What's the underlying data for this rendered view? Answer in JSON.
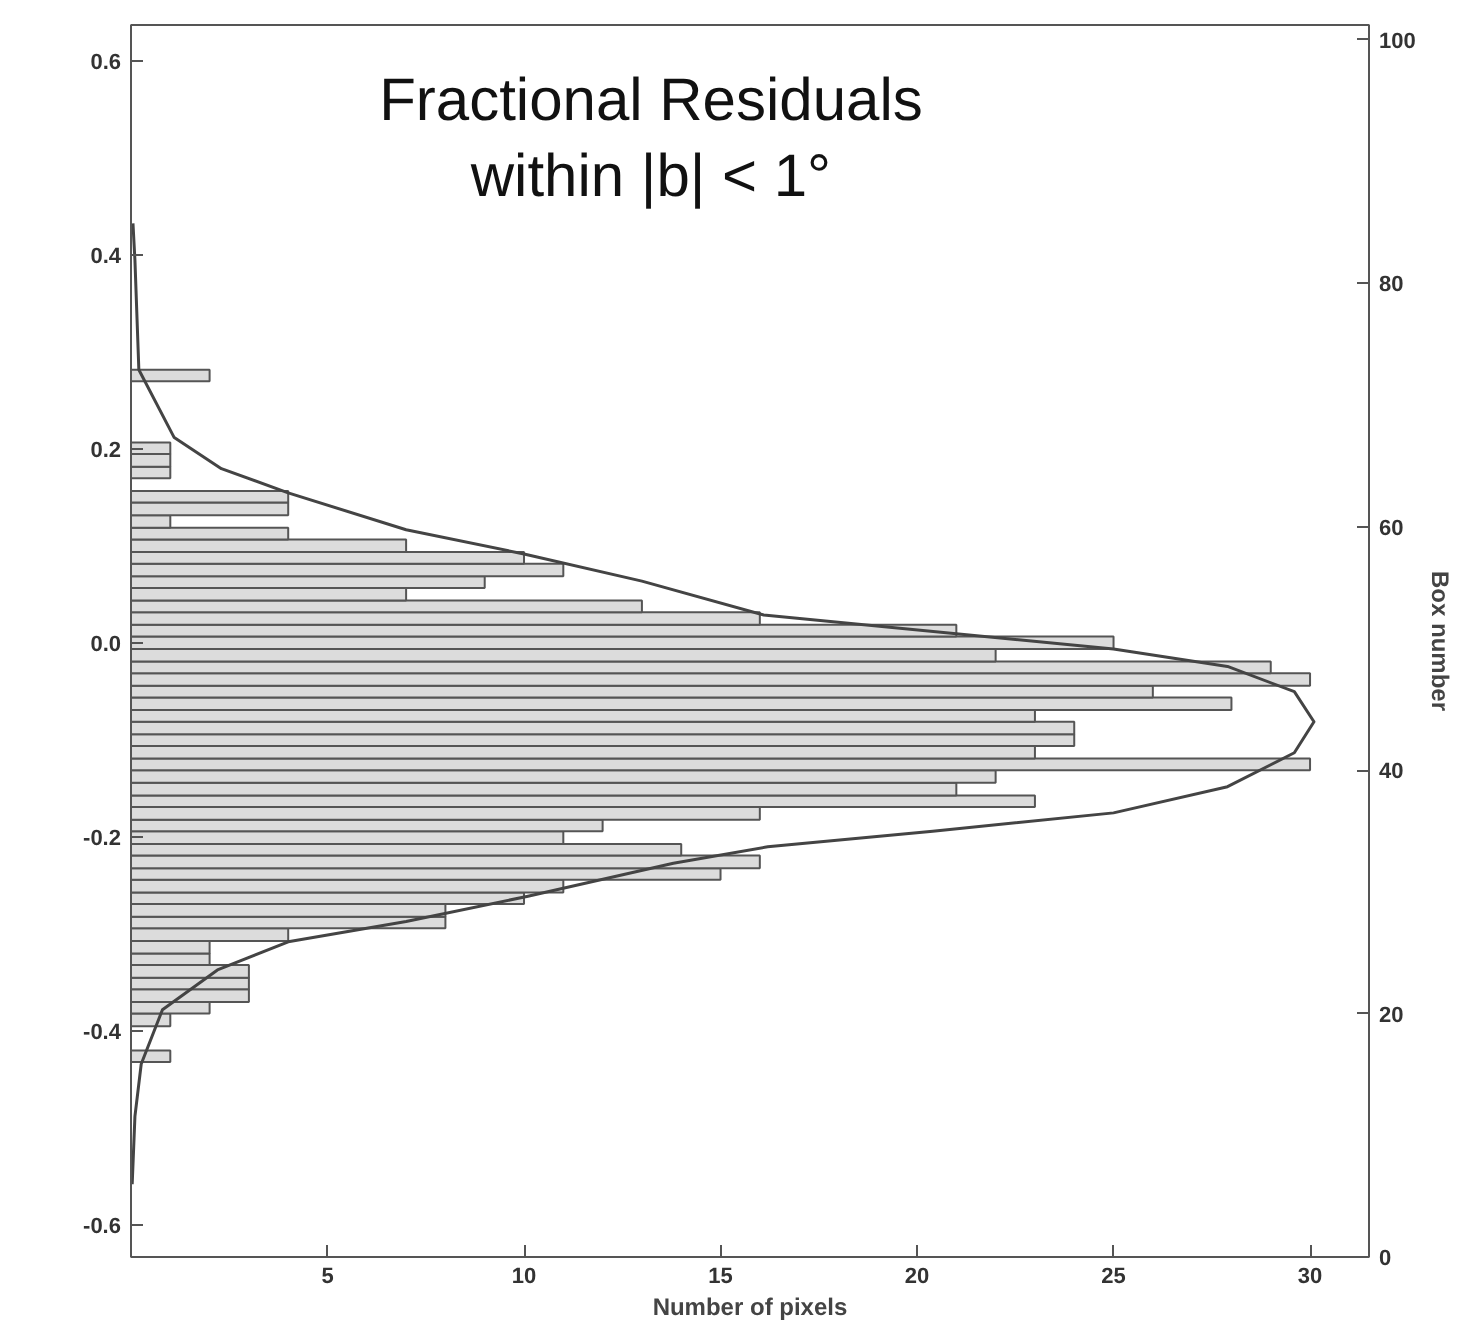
{
  "chart_data": {
    "type": "histogram",
    "orientation": "horizontal",
    "title": "Fractional Residuals\nwithin |b| < 1°",
    "xlabel": "Number of pixels",
    "y2label": "Box number",
    "xlim": [
      0,
      31.5
    ],
    "xticks": [
      5,
      10,
      15,
      20,
      25,
      30
    ],
    "ylim": [
      -0.633,
      0.6375
    ],
    "yticks": [
      {
        "value": -0.6,
        "label": "-0.6"
      },
      {
        "value": -0.4,
        "label": "-0.4"
      },
      {
        "value": -0.2,
        "label": "-0.2"
      },
      {
        "value": 0,
        "label": "0.0"
      },
      {
        "value": 0.2,
        "label": "0.2"
      },
      {
        "value": 0.4,
        "label": "0.4"
      },
      {
        "value": 0.6,
        "label": "0.6"
      }
    ],
    "y2lim": [
      0,
      101.2
    ],
    "y2ticks": [
      0,
      20,
      40,
      60,
      80,
      100
    ],
    "grid": false,
    "series": [
      {
        "color": "#dcdcdc",
        "bins": [
          -0.432,
          -0.42,
          -0.395,
          -0.382,
          -0.37,
          -0.357,
          -0.345,
          -0.332,
          -0.32,
          -0.307,
          -0.294,
          -0.282,
          -0.269,
          -0.257,
          -0.244,
          -0.232,
          -0.219,
          -0.207,
          -0.194,
          -0.182,
          -0.169,
          -0.157,
          -0.144,
          -0.131,
          -0.119,
          -0.106,
          -0.094,
          -0.081,
          -0.069,
          -0.056,
          -0.044,
          -0.031,
          -0.019,
          -0.006,
          0.007,
          0.019,
          0.032,
          0.044,
          0.057,
          0.069,
          0.082,
          0.094,
          0.107,
          0.119,
          0.132,
          0.145,
          0.157,
          0.17,
          0.182,
          0.195,
          0.207,
          0.27,
          0.282
        ],
        "values": [
          1,
          0,
          1,
          2,
          3,
          3,
          3,
          2,
          2,
          4,
          8,
          8,
          10,
          11,
          15,
          16,
          14,
          11,
          12,
          16,
          23,
          21,
          22,
          30,
          23,
          24,
          24,
          23,
          28,
          26,
          30,
          29,
          22,
          25,
          21,
          16,
          13,
          7,
          9,
          11,
          10,
          7,
          4,
          1,
          4,
          4,
          0,
          1,
          1,
          1,
          0,
          2
        ]
      },
      {
        "type": "line",
        "color": "#444444",
        "values": [
          0.03,
          0.1,
          0.26,
          0.8,
          2.2,
          4.0,
          7.0,
          10.1,
          13.8,
          16.2,
          20.4,
          25,
          27.9,
          29.6,
          30.1,
          29.6,
          27.9,
          25,
          16.1,
          13.0,
          10.0,
          7.0,
          4.0,
          2.3,
          1.1,
          0.2,
          0.1,
          0.05
        ],
        "x": [
          -0.558,
          -0.488,
          -0.434,
          -0.378,
          -0.337,
          -0.308,
          -0.287,
          -0.261,
          -0.227,
          -0.21,
          -0.194,
          -0.175,
          -0.148,
          -0.113,
          -0.081,
          -0.05,
          -0.024,
          -0.006,
          0.029,
          0.064,
          0.092,
          0.117,
          0.155,
          0.18,
          0.212,
          0.282,
          0.395,
          0.433
        ]
      }
    ]
  }
}
